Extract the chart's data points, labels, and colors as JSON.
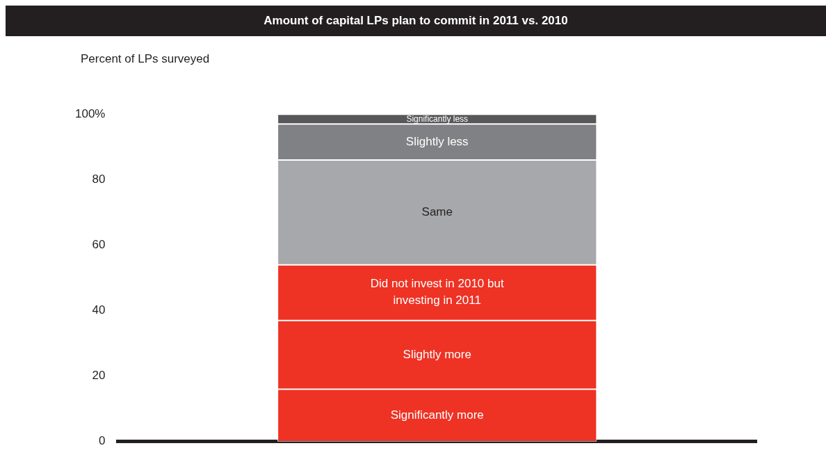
{
  "chart_data": {
    "type": "bar",
    "title": "Amount of capital LPs plan to commit in 2011 vs. 2010",
    "ylabel": "Percent of LPs surveyed",
    "categories": [
      null
    ],
    "stacked": true,
    "legend": false,
    "grid": false,
    "ylim": [
      0,
      100
    ],
    "yticks": [
      0,
      20,
      40,
      60,
      80,
      {
        "value": 100,
        "label": "100%"
      }
    ],
    "series": [
      {
        "name": "Significantly more",
        "color": "#ee3224",
        "values": [
          16
        ]
      },
      {
        "name": "Slightly more",
        "color": "#ee3224",
        "values": [
          21
        ]
      },
      {
        "name": "Did not invest in 2010 but investing in 2011",
        "color": "#ee3224",
        "values": [
          17
        ]
      },
      {
        "name": "Same",
        "color": "#a7a8ab",
        "values": [
          32
        ]
      },
      {
        "name": "Slightly less",
        "color": "#808184",
        "values": [
          11
        ]
      },
      {
        "name": "Significantly less",
        "color": "#58585a",
        "values": [
          3
        ]
      }
    ]
  }
}
